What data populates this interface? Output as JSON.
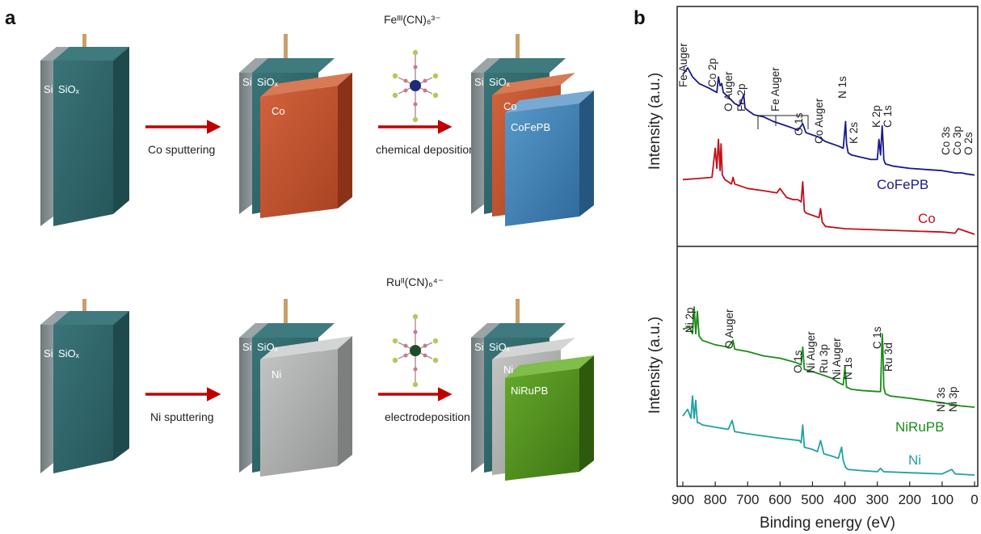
{
  "panel_a": {
    "letter": "a",
    "row1": {
      "step1_label": "Co sputtering",
      "step2_label": "chemical deposition",
      "molecule_formula": "Feᴵᴵᴵ(CN)₆³⁻",
      "layer_si": "Si",
      "layer_siox": "SiOₓ",
      "layer_metal": "Co",
      "layer_pb": "CoFePB"
    },
    "row2": {
      "step1_label": "Ni sputtering",
      "step2_label": "electrodeposition",
      "molecule_formula": "Ruᴵᴵ(CN)₆⁴⁻",
      "layer_si": "Si",
      "layer_siox": "SiOₓ",
      "layer_metal": "Ni",
      "layer_pb": "NiRuPB"
    },
    "colors": {
      "siox": "#2e6468",
      "si": "#808a8e",
      "co": "#c1532f",
      "cofepb": "#3d7fb5",
      "ni": "#a9abaa",
      "niruPB": "#4f8f1e",
      "arrow": "#c00000",
      "wire": "#c8a06a"
    }
  },
  "panel_b": {
    "letter": "b",
    "xlabel": "Binding energy (eV)",
    "ylabel": "Intensity (a.u.)",
    "xticks": [
      "900",
      "800",
      "700",
      "600",
      "500",
      "400",
      "300",
      "200",
      "100",
      "0"
    ],
    "top_peak_labels": [
      "Fe Auger",
      "Co 2p",
      "O Auger",
      "Fe 2p",
      "Fe Auger",
      "O 1s",
      "Co Auger",
      "N 1s",
      "K 2s",
      "K 2p",
      "C 1s",
      "Co 3s",
      "Co 3p",
      "O 2s"
    ],
    "bottom_peak_labels": [
      "Ni 2p",
      "O Auger",
      "O 1s",
      "Ni Auger",
      "Ru 3p",
      "Ni Auger",
      "N 1s",
      "C 1s",
      "Ru 3d",
      "Ni 3s",
      "Ni 3p"
    ]
  },
  "chart_data": {
    "type": "line",
    "xlabel": "Binding energy (eV)",
    "ylabel": "Intensity (a.u.)",
    "xlim": [
      900,
      0
    ],
    "panels": [
      {
        "series": [
          {
            "name": "CoFePB",
            "color": "#1a1a8c",
            "x": [
              900,
              885,
              870,
              850,
              820,
              795,
              790,
              785,
              780,
              775,
              760,
              740,
              725,
              712,
              708,
              700,
              680,
              650,
              620,
              600,
              580,
              560,
              545,
              530,
              520,
              500,
              480,
              460,
              440,
              420,
              405,
              398,
              395,
              390,
              380,
              350,
              320,
              300,
              295,
              290,
              285,
              282,
              280,
              275,
              250,
              200,
              150,
              100,
              60,
              40,
              25,
              0
            ],
            "y": [
              8.1,
              8.4,
              8.0,
              7.7,
              7.5,
              7.3,
              8.0,
              7.6,
              7.7,
              7.3,
              7.1,
              6.8,
              6.7,
              7.2,
              6.6,
              6.5,
              6.3,
              6.2,
              6.0,
              5.9,
              5.8,
              5.7,
              5.6,
              5.9,
              5.5,
              5.4,
              5.3,
              5.1,
              5.0,
              4.9,
              4.8,
              6.0,
              5.0,
              4.6,
              4.5,
              4.4,
              4.3,
              4.3,
              5.2,
              4.5,
              5.8,
              5.0,
              4.3,
              4.1,
              4.0,
              3.9,
              3.85,
              3.8,
              3.7,
              3.7,
              3.65,
              3.6
            ]
          },
          {
            "name": "Co",
            "color": "#c0101a",
            "x": [
              900,
              850,
              810,
              800,
              795,
              790,
              785,
              782,
              778,
              770,
              750,
              745,
              740,
              700,
              650,
              610,
              600,
              580,
              560,
              545,
              535,
              530,
              525,
              520,
              500,
              480,
              475,
              470,
              460,
              400,
              300,
              200,
              100,
              60,
              50,
              0
            ],
            "y": [
              3.4,
              3.45,
              3.5,
              4.8,
              3.9,
              5.2,
              3.8,
              5.0,
              3.6,
              3.4,
              3.2,
              3.5,
              3.2,
              3.0,
              2.9,
              2.8,
              3.0,
              2.6,
              2.5,
              2.5,
              2.4,
              3.3,
              2.0,
              1.9,
              1.8,
              1.7,
              2.1,
              1.5,
              1.3,
              1.2,
              1.15,
              1.1,
              1.05,
              1.0,
              1.2,
              0.95
            ]
          }
        ]
      },
      {
        "series": [
          {
            "name": "NiRuPB",
            "color": "#1a8c1a",
            "x": [
              900,
              880,
              870,
              865,
              860,
              855,
              850,
              840,
              800,
              760,
              745,
              740,
              700,
              650,
              600,
              550,
              535,
              530,
              525,
              500,
              480,
              460,
              440,
              420,
              405,
              400,
              395,
              380,
              350,
              300,
              290,
              285,
              283,
              280,
              275,
              260,
              200,
              150,
              100,
              60,
              40,
              0
            ],
            "y": [
              7.2,
              7.3,
              7.0,
              8.2,
              7.0,
              8.0,
              6.9,
              6.7,
              6.5,
              6.4,
              6.7,
              6.3,
              6.2,
              6.0,
              5.9,
              5.7,
              5.6,
              6.4,
              5.4,
              5.3,
              5.2,
              5.1,
              5.0,
              4.8,
              4.7,
              5.5,
              4.6,
              4.5,
              4.45,
              4.4,
              4.4,
              7.0,
              6.5,
              4.6,
              4.3,
              4.2,
              4.1,
              4.0,
              3.9,
              3.8,
              3.75,
              3.7
            ]
          },
          {
            "name": "Ni",
            "color": "#22a1a1",
            "x": [
              900,
              885,
              875,
              870,
              865,
              860,
              855,
              850,
              840,
              800,
              760,
              748,
              740,
              700,
              600,
              540,
              535,
              530,
              525,
              500,
              485,
              475,
              465,
              440,
              420,
              410,
              405,
              398,
              390,
              350,
              300,
              290,
              280,
              200,
              100,
              70,
              60,
              0
            ],
            "y": [
              3.3,
              3.6,
              3.2,
              4.2,
              3.2,
              4.0,
              3.0,
              3.0,
              2.9,
              2.8,
              2.7,
              3.1,
              2.6,
              2.5,
              2.3,
              2.2,
              2.1,
              2.9,
              1.9,
              1.8,
              1.7,
              2.2,
              1.6,
              1.5,
              1.4,
              1.9,
              1.3,
              1.0,
              0.9,
              0.85,
              0.8,
              0.95,
              0.8,
              0.75,
              0.7,
              0.9,
              0.7,
              0.65
            ]
          }
        ]
      }
    ]
  }
}
